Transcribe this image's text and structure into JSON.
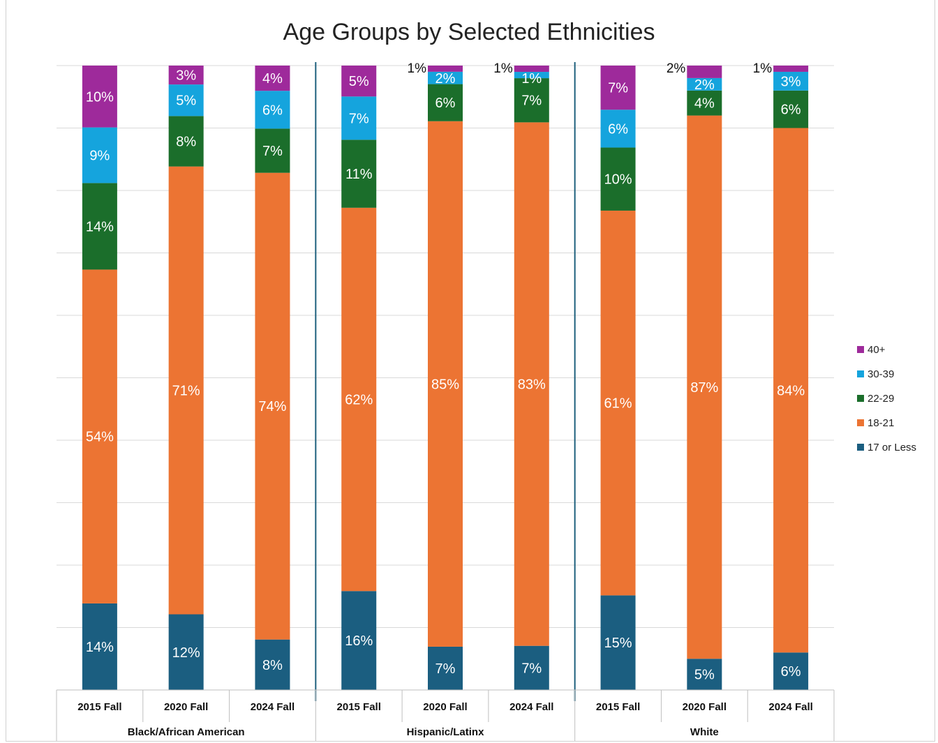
{
  "chart_data": {
    "type": "bar",
    "stacked": true,
    "title": "Age Groups by Selected Ethnicities",
    "groups": [
      {
        "name": "Black/African American",
        "categories": [
          "2015 Fall",
          "2020 Fall",
          "2024 Fall"
        ]
      },
      {
        "name": "Hispanic/Latinx",
        "categories": [
          "2015 Fall",
          "2020 Fall",
          "2024 Fall"
        ]
      },
      {
        "name": "White",
        "categories": [
          "2015 Fall",
          "2020 Fall",
          "2024 Fall"
        ]
      }
    ],
    "series": [
      {
        "name": "17 or Less",
        "color": "#1b5e80",
        "values": [
          14,
          12,
          8,
          16,
          7,
          7,
          15,
          5,
          6
        ]
      },
      {
        "name": "18-21",
        "color": "#ec7433",
        "values": [
          54,
          71,
          74,
          62,
          85,
          83,
          61,
          87,
          84
        ]
      },
      {
        "name": "22-29",
        "color": "#1b6e2b",
        "values": [
          14,
          8,
          7,
          11,
          6,
          7,
          10,
          4,
          6
        ]
      },
      {
        "name": "30-39",
        "color": "#15a4dd",
        "values": [
          9,
          5,
          6,
          7,
          2,
          1,
          6,
          2,
          3
        ]
      },
      {
        "name": "40+",
        "color": "#9e2a9b",
        "values": [
          10,
          3,
          4,
          5,
          1,
          1,
          7,
          2,
          1
        ]
      }
    ],
    "value_suffix": "%",
    "legend_position": "right",
    "grid": true
  }
}
